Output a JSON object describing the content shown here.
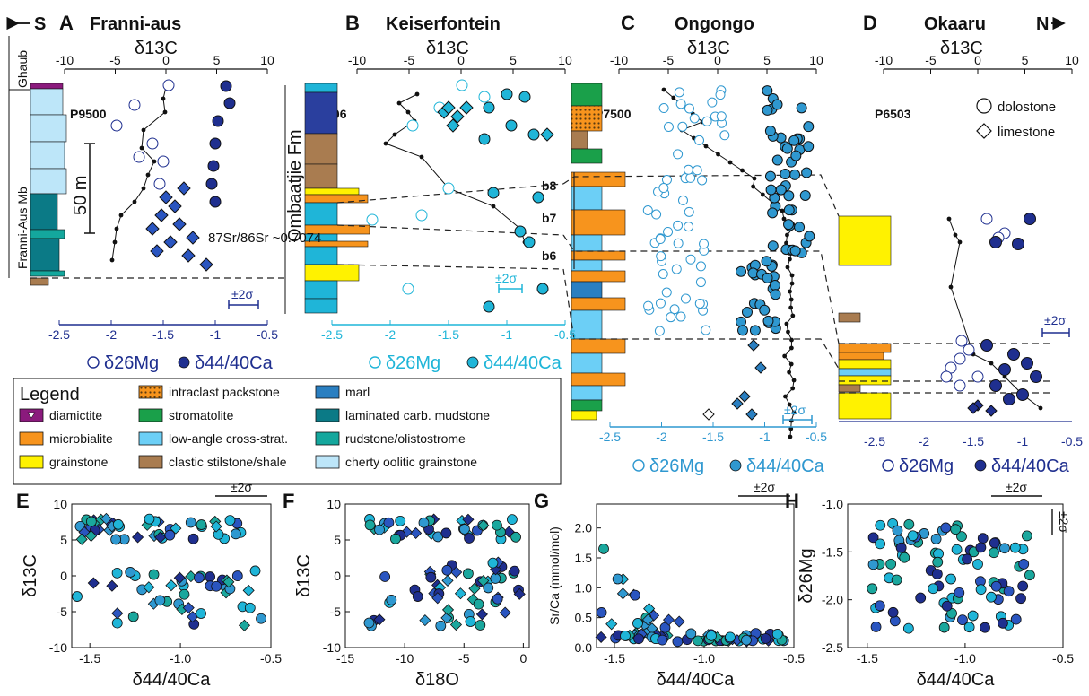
{
  "directions": {
    "south": "S",
    "north": "N"
  },
  "profiles": [
    {
      "letter": "A",
      "title": "Franni-aus",
      "c_axis": "δ13C",
      "section": "P9500",
      "bottom_left": "δ26Mg",
      "bottom_right": "δ44/40Ca",
      "bottom_ticks": [
        "-2.5",
        "-2",
        "-1.5",
        "-1",
        "-0.5"
      ],
      "annotation": "87Sr/86Sr ~0.7074",
      "sigma": "±2σ"
    },
    {
      "letter": "B",
      "title": "Keiserfontein",
      "c_axis": "δ13C",
      "section": "P4006",
      "bottom_left": "δ26Mg",
      "bottom_right": "δ44/40Ca",
      "bottom_ticks": [
        "-2.5",
        "-2",
        "-1.5",
        "-1",
        "-0.5"
      ],
      "sigma": "±2σ",
      "beds": [
        "b8",
        "b7",
        "b6"
      ]
    },
    {
      "letter": "C",
      "title": "Ongongo",
      "c_axis": "δ13C",
      "section": "P7500",
      "bottom_left": "δ26Mg",
      "bottom_right": "δ44/40Ca",
      "bottom_ticks": [
        "-2.5",
        "-2",
        "-1.5",
        "-1",
        "-0.5"
      ],
      "sigma": "±2σ"
    },
    {
      "letter": "D",
      "title": "Okaaru",
      "c_axis": "δ13C",
      "section": "P6503",
      "bottom_left": "δ26Mg",
      "bottom_right": "δ44/40Ca",
      "sigma": "±2σ"
    }
  ],
  "c_ticks": [
    "-10",
    "-5",
    "0",
    "5",
    "10"
  ],
  "strat_labels": {
    "ghaub": "Ghaub",
    "member": "Franni-Aus Mb",
    "formation": "Ombaatjie Fm",
    "scale": "50 m"
  },
  "symbol_key": {
    "dolostone": "dolostone",
    "limestone": "limestone"
  },
  "legend": {
    "title": "Legend",
    "items": [
      {
        "label": "diamictite",
        "color": "#8b1a7d"
      },
      {
        "label": "microbialite",
        "color": "#f7941d"
      },
      {
        "label": "grainstone",
        "color": "#fff200"
      },
      {
        "label": "intraclast packstone",
        "color": "#c8964b"
      },
      {
        "label": "stromatolite",
        "color": "#1aa04a"
      },
      {
        "label": "low-angle cross-strat.",
        "color": "#6ccff6"
      },
      {
        "label": "clastic stilstone/shale",
        "color": "#a97c50"
      },
      {
        "label": "marl",
        "color": "#2a7fc1"
      },
      {
        "label": "laminated carb. mudstone",
        "color": "#0b7a86"
      },
      {
        "label": "rudstone/olistostrome",
        "color": "#14a79d"
      },
      {
        "label": "cherty oolitic grainstone",
        "color": "#bde6f9"
      }
    ]
  },
  "scatter_panels": [
    {
      "letter": "E",
      "xlabel": "δ44/40Ca",
      "ylabel": "δ13C",
      "xticks": [
        "-1.5",
        "-1.0",
        "-0.5"
      ],
      "yticks": [
        "10",
        "5",
        "0",
        "-5",
        "-10"
      ],
      "sigma": "±2σ"
    },
    {
      "letter": "F",
      "xlabel": "δ18O",
      "ylabel": "δ13C",
      "xticks": [
        "-15",
        "-10",
        "-5",
        "0"
      ],
      "yticks": [
        "10",
        "5",
        "0",
        "-5",
        "-10"
      ]
    },
    {
      "letter": "G",
      "xlabel": "δ44/40Ca",
      "ylabel": "Sr/Ca (mmol/mol)",
      "xticks": [
        "-1.5",
        "-1.0",
        "-0.5"
      ],
      "yticks": [
        "2.0",
        "1.5",
        "1.0",
        "0.5",
        "0.0"
      ],
      "sigma": "±2σ"
    },
    {
      "letter": "H",
      "xlabel": "δ44/40Ca",
      "ylabel": "δ26Mg",
      "xticks": [
        "-1.5",
        "-1.0",
        "-0.5"
      ],
      "yticks": [
        "-1.0",
        "-1.5",
        "-2.0",
        "-2.5"
      ],
      "sigma": "±2σ"
    }
  ],
  "colors": {
    "navy": "#1f2f8f",
    "royal": "#2a55c0",
    "sky": "#2f98d0",
    "cyan": "#1fb5d8",
    "teal": "#1aa79d",
    "black": "#111111"
  }
}
